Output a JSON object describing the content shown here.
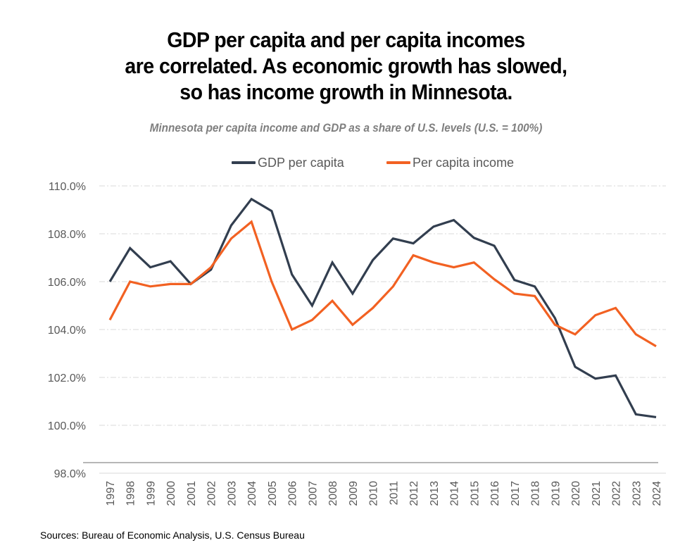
{
  "title_lines": [
    "GDP per capita and per capita incomes",
    "are correlated. As economic growth has slowed,",
    "so has income growth in Minnesota."
  ],
  "subtitle": "Minnesota per capita income and GDP as a share of U.S. levels (U.S. = 100%)",
  "source": "Sources: Bureau of Economic Analysis, U.S. Census Bureau",
  "colors": {
    "gdp": "#323e4f",
    "income": "#f26122",
    "grid": "#d9d9d9",
    "axis": "#8c8c8c",
    "tick_text": "#595959"
  },
  "chart_data": {
    "type": "line",
    "title": "GDP per capita and per capita incomes are correlated. As economic growth has slowed, so has income growth in Minnesota.",
    "subtitle": "Minnesota per capita income and GDP as a share of U.S. levels (U.S. = 100%)",
    "xlabel": "",
    "ylabel": "",
    "x": [
      "1997",
      "1998",
      "1999",
      "2000",
      "2001",
      "2002",
      "2003",
      "2004",
      "2005",
      "2006",
      "2007",
      "2008",
      "2009",
      "2010",
      "2011",
      "2012",
      "2013",
      "2014",
      "2015",
      "2016",
      "2017",
      "2018",
      "2019",
      "2020",
      "2021",
      "2022",
      "2023",
      "2024"
    ],
    "ylim": [
      98,
      110
    ],
    "yticks": [
      98,
      100,
      102,
      104,
      106,
      108,
      110
    ],
    "ytick_labels": [
      "98.0%",
      "100.0%",
      "102.0%",
      "104.0%",
      "106.0%",
      "108.0%",
      "110.0%"
    ],
    "grid": true,
    "legend": "top-center",
    "series": [
      {
        "name": "GDP per capita",
        "color": "#323e4f",
        "values": [
          106.0,
          107.4,
          106.6,
          106.85,
          105.9,
          106.5,
          108.35,
          109.45,
          108.95,
          106.3,
          105.0,
          106.8,
          105.5,
          106.9,
          107.8,
          107.6,
          108.3,
          108.57,
          107.83,
          107.5,
          106.07,
          105.8,
          104.48,
          102.44,
          101.95,
          102.08,
          100.46,
          100.34
        ]
      },
      {
        "name": "Per capita income",
        "color": "#f26122",
        "values": [
          104.4,
          106.0,
          105.8,
          105.9,
          105.9,
          106.6,
          107.8,
          108.5,
          106.0,
          104.0,
          104.4,
          105.2,
          104.2,
          104.9,
          105.8,
          107.1,
          106.8,
          106.6,
          106.8,
          106.1,
          105.5,
          105.4,
          104.2,
          103.8,
          104.6,
          104.9,
          103.8,
          103.3
        ]
      }
    ]
  }
}
